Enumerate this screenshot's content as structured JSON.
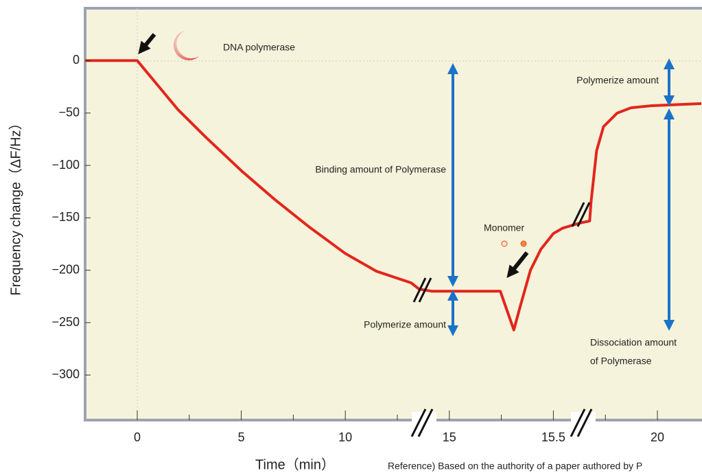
{
  "chart_data": {
    "type": "line",
    "x_label": "Time（min）",
    "y_label": "Frequency change（ΔF/Hz）",
    "x_scale": "broken",
    "xlim": [
      -2.5,
      21.9
    ],
    "xticks": [
      0,
      5,
      10,
      15,
      15.5,
      20
    ],
    "xminorticks": [
      2.5,
      7.5,
      12.5,
      15.25,
      17.75
    ],
    "ylim": [
      -343,
      50
    ],
    "yticks": [
      0,
      {
        "value": -50,
        "label": "−50"
      },
      {
        "value": -100,
        "label": "−100"
      },
      {
        "value": -150,
        "label": "−150"
      },
      {
        "value": -200,
        "label": "−200"
      },
      {
        "value": -250,
        "label": "−250"
      },
      {
        "value": -300,
        "label": "−300"
      }
    ],
    "grid": false,
    "color": "#e3261c",
    "x": [
      -2.5,
      0,
      1.97,
      3.29,
      5,
      6.58,
      8.22,
      10,
      11.5,
      13.16,
      13.55,
      14.14,
      15.245,
      15.28,
      15.31,
      15.34,
      15.39,
      15.44,
      15.5,
      15.89,
      16.63,
      17.07,
      17.13,
      17.37,
      17.67,
      18.26,
      18.86,
      19.75,
      21.9
    ],
    "values": [
      0,
      0,
      -47,
      -73,
      -105,
      -132,
      -158,
      -184,
      -201,
      -212,
      -218,
      -220,
      -220,
      -240,
      -257,
      -235,
      -200,
      -180,
      -165,
      -160,
      -155,
      -153,
      -135,
      -86,
      -63,
      -50,
      -45,
      -43,
      -41
    ],
    "annotations": {
      "dna_polymerase": "DNA polymerase",
      "binding": "Binding amount of Polymerase",
      "polymerize_lower": "Polymerize amount",
      "polymerize_upper": "Polymerize amount",
      "monomer": "Monomer",
      "dissociation": [
        "Dissociation amount",
        "of Polymerase"
      ],
      "reference": "Reference) Based on the authority of a paper authored by P"
    }
  }
}
